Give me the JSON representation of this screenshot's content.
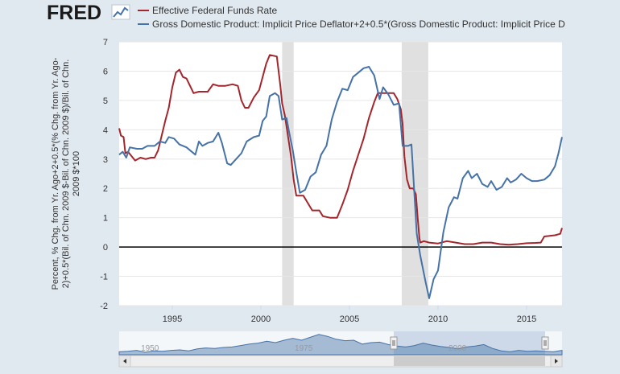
{
  "header": {
    "logo": "FRED"
  },
  "colors": {
    "fedfunds": "#a4262c",
    "gdp": "#4572a7",
    "recession": "#e0e0e0",
    "zero_line": "#000000",
    "navigator_fill": "#4572a7"
  },
  "chart_data": {
    "type": "line",
    "title": "",
    "xlabel": "",
    "ylabel": "Percent, % Chg. from Yr. Ago+2+0.5*(% Chg. from Yr. Ago-2)+0.5*(Bil. of Chn. 2009 $-Bil. of Chn. 2009 $)/Bil. of Chn. 2009 $*100",
    "ylabel_lines": [
      "Percent, % Chg. from Yr. Ago+2+0.5*(% Chg. from Yr. Ago-",
      "2)+0.5*(Bil. of Chn. 2009 $-Bil. of Chn. 2009 $)/Bil. of Chn.",
      "2009 $*100"
    ],
    "xlim": [
      1992.0,
      2017.0
    ],
    "ylim": [
      -2,
      7
    ],
    "x_ticks": [
      1995,
      2000,
      2005,
      2010,
      2015
    ],
    "x_tick_labels": [
      "1995",
      "2000",
      "2005",
      "2010",
      "2015"
    ],
    "y_ticks": [
      -2,
      -1,
      0,
      1,
      2,
      3,
      4,
      5,
      6,
      7
    ],
    "y_tick_labels": [
      "-2",
      "-1",
      "0",
      "1",
      "2",
      "3",
      "4",
      "5",
      "6",
      "7"
    ],
    "grid": "horizontal",
    "legend_position": "top-left",
    "recessions": [
      [
        2001.2,
        2001.85
      ],
      [
        2007.95,
        2009.45
      ]
    ],
    "navigator": {
      "labels": [
        {
          "x": 1950,
          "label": "1950"
        },
        {
          "x": 1975,
          "label": "1975"
        },
        {
          "x": 2000,
          "label": "2000"
        }
      ],
      "selected_range": [
        1992.0,
        2017.0
      ]
    },
    "series": [
      {
        "name": "Effective Federal Funds Rate",
        "color": "#a4262c",
        "points": [
          [
            1992.0,
            4.05
          ],
          [
            1992.1,
            3.8
          ],
          [
            1992.25,
            3.75
          ],
          [
            1992.35,
            3.2
          ],
          [
            1992.5,
            3.25
          ],
          [
            1992.7,
            3.1
          ],
          [
            1992.9,
            2.95
          ],
          [
            1993.2,
            3.05
          ],
          [
            1993.5,
            3.0
          ],
          [
            1993.8,
            3.05
          ],
          [
            1994.0,
            3.05
          ],
          [
            1994.2,
            3.3
          ],
          [
            1994.4,
            3.8
          ],
          [
            1994.6,
            4.3
          ],
          [
            1994.8,
            4.75
          ],
          [
            1995.0,
            5.45
          ],
          [
            1995.2,
            5.95
          ],
          [
            1995.4,
            6.05
          ],
          [
            1995.6,
            5.8
          ],
          [
            1995.8,
            5.75
          ],
          [
            1996.0,
            5.5
          ],
          [
            1996.2,
            5.25
          ],
          [
            1996.5,
            5.3
          ],
          [
            1996.8,
            5.3
          ],
          [
            1997.0,
            5.3
          ],
          [
            1997.3,
            5.55
          ],
          [
            1997.6,
            5.5
          ],
          [
            1998.0,
            5.5
          ],
          [
            1998.4,
            5.55
          ],
          [
            1998.7,
            5.5
          ],
          [
            1998.9,
            5.0
          ],
          [
            1999.1,
            4.75
          ],
          [
            1999.3,
            4.75
          ],
          [
            1999.6,
            5.1
          ],
          [
            1999.9,
            5.35
          ],
          [
            2000.1,
            5.8
          ],
          [
            2000.3,
            6.25
          ],
          [
            2000.5,
            6.55
          ],
          [
            2000.9,
            6.5
          ],
          [
            2001.0,
            6.0
          ],
          [
            2001.1,
            5.5
          ],
          [
            2001.2,
            4.9
          ],
          [
            2001.35,
            4.5
          ],
          [
            2001.5,
            3.9
          ],
          [
            2001.7,
            3.1
          ],
          [
            2001.85,
            2.3
          ],
          [
            2002.0,
            1.75
          ],
          [
            2002.4,
            1.75
          ],
          [
            2002.9,
            1.25
          ],
          [
            2003.3,
            1.25
          ],
          [
            2003.5,
            1.05
          ],
          [
            2003.9,
            1.0
          ],
          [
            2004.3,
            1.0
          ],
          [
            2004.6,
            1.45
          ],
          [
            2004.9,
            1.95
          ],
          [
            2005.2,
            2.6
          ],
          [
            2005.5,
            3.15
          ],
          [
            2005.8,
            3.7
          ],
          [
            2006.1,
            4.4
          ],
          [
            2006.4,
            4.95
          ],
          [
            2006.6,
            5.25
          ],
          [
            2007.0,
            5.25
          ],
          [
            2007.5,
            5.25
          ],
          [
            2007.7,
            5.05
          ],
          [
            2007.9,
            4.7
          ],
          [
            2008.0,
            4.2
          ],
          [
            2008.1,
            3.1
          ],
          [
            2008.25,
            2.3
          ],
          [
            2008.4,
            2.0
          ],
          [
            2008.6,
            2.0
          ],
          [
            2008.75,
            1.8
          ],
          [
            2008.85,
            1.0
          ],
          [
            2008.95,
            0.3
          ],
          [
            2009.0,
            0.15
          ],
          [
            2009.2,
            0.2
          ],
          [
            2009.5,
            0.15
          ],
          [
            2010.0,
            0.12
          ],
          [
            2010.5,
            0.2
          ],
          [
            2011.0,
            0.15
          ],
          [
            2011.5,
            0.1
          ],
          [
            2012.0,
            0.1
          ],
          [
            2012.5,
            0.15
          ],
          [
            2013.0,
            0.15
          ],
          [
            2013.5,
            0.1
          ],
          [
            2014.0,
            0.08
          ],
          [
            2014.5,
            0.1
          ],
          [
            2015.0,
            0.13
          ],
          [
            2015.5,
            0.14
          ],
          [
            2015.8,
            0.15
          ],
          [
            2016.0,
            0.36
          ],
          [
            2016.3,
            0.38
          ],
          [
            2016.6,
            0.4
          ],
          [
            2016.9,
            0.45
          ],
          [
            2017.0,
            0.65
          ]
        ]
      },
      {
        "name": "Gross Domestic Product: Implicit Price Deflator+2+0.5*(Gross Domestic Product: Implicit Price D",
        "color": "#4572a7",
        "points": [
          [
            1992.0,
            3.15
          ],
          [
            1992.2,
            3.25
          ],
          [
            1992.4,
            3.05
          ],
          [
            1992.6,
            3.4
          ],
          [
            1993.0,
            3.35
          ],
          [
            1993.3,
            3.35
          ],
          [
            1993.6,
            3.45
          ],
          [
            1994.0,
            3.45
          ],
          [
            1994.3,
            3.6
          ],
          [
            1994.6,
            3.55
          ],
          [
            1994.8,
            3.75
          ],
          [
            1995.1,
            3.7
          ],
          [
            1995.4,
            3.5
          ],
          [
            1995.8,
            3.4
          ],
          [
            1996.1,
            3.25
          ],
          [
            1996.3,
            3.15
          ],
          [
            1996.5,
            3.6
          ],
          [
            1996.7,
            3.45
          ],
          [
            1997.0,
            3.55
          ],
          [
            1997.3,
            3.6
          ],
          [
            1997.6,
            3.9
          ],
          [
            1997.8,
            3.55
          ],
          [
            1998.1,
            2.85
          ],
          [
            1998.3,
            2.8
          ],
          [
            1998.6,
            3.0
          ],
          [
            1998.9,
            3.2
          ],
          [
            1999.2,
            3.6
          ],
          [
            1999.6,
            3.75
          ],
          [
            1999.9,
            3.8
          ],
          [
            2000.1,
            4.3
          ],
          [
            2000.3,
            4.45
          ],
          [
            2000.5,
            5.15
          ],
          [
            2000.8,
            5.25
          ],
          [
            2001.0,
            5.15
          ],
          [
            2001.2,
            4.35
          ],
          [
            2001.45,
            4.4
          ],
          [
            2001.6,
            3.9
          ],
          [
            2001.8,
            3.3
          ],
          [
            2002.0,
            2.55
          ],
          [
            2002.2,
            1.85
          ],
          [
            2002.5,
            1.95
          ],
          [
            2002.8,
            2.4
          ],
          [
            2003.1,
            2.55
          ],
          [
            2003.4,
            3.15
          ],
          [
            2003.7,
            3.45
          ],
          [
            2004.0,
            4.35
          ],
          [
            2004.3,
            4.95
          ],
          [
            2004.6,
            5.4
          ],
          [
            2004.9,
            5.35
          ],
          [
            2005.2,
            5.8
          ],
          [
            2005.5,
            5.95
          ],
          [
            2005.8,
            6.1
          ],
          [
            2006.1,
            6.15
          ],
          [
            2006.4,
            5.85
          ],
          [
            2006.7,
            5.05
          ],
          [
            2006.9,
            5.45
          ],
          [
            2007.2,
            5.2
          ],
          [
            2007.5,
            4.85
          ],
          [
            2007.8,
            4.9
          ],
          [
            2008.0,
            3.45
          ],
          [
            2008.3,
            3.45
          ],
          [
            2008.5,
            3.5
          ],
          [
            2008.8,
            0.45
          ],
          [
            2009.0,
            -0.3
          ],
          [
            2009.3,
            -1.2
          ],
          [
            2009.5,
            -1.75
          ],
          [
            2009.75,
            -1.1
          ],
          [
            2010.0,
            -0.8
          ],
          [
            2010.3,
            0.5
          ],
          [
            2010.6,
            1.35
          ],
          [
            2010.9,
            1.7
          ],
          [
            2011.1,
            1.65
          ],
          [
            2011.4,
            2.35
          ],
          [
            2011.7,
            2.6
          ],
          [
            2011.9,
            2.35
          ],
          [
            2012.2,
            2.5
          ],
          [
            2012.5,
            2.15
          ],
          [
            2012.8,
            2.05
          ],
          [
            2013.0,
            2.25
          ],
          [
            2013.3,
            1.95
          ],
          [
            2013.6,
            2.05
          ],
          [
            2013.9,
            2.35
          ],
          [
            2014.1,
            2.2
          ],
          [
            2014.4,
            2.3
          ],
          [
            2014.7,
            2.5
          ],
          [
            2015.0,
            2.35
          ],
          [
            2015.3,
            2.25
          ],
          [
            2015.6,
            2.25
          ],
          [
            2016.0,
            2.3
          ],
          [
            2016.3,
            2.45
          ],
          [
            2016.6,
            2.75
          ],
          [
            2016.8,
            3.2
          ],
          [
            2017.0,
            3.75
          ]
        ]
      }
    ]
  }
}
